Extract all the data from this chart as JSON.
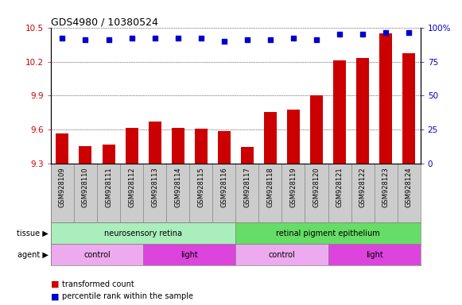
{
  "title": "GDS4980 / 10380524",
  "samples": [
    "GSM928109",
    "GSM928110",
    "GSM928111",
    "GSM928112",
    "GSM928113",
    "GSM928114",
    "GSM928115",
    "GSM928116",
    "GSM928117",
    "GSM928118",
    "GSM928119",
    "GSM928120",
    "GSM928121",
    "GSM928122",
    "GSM928123",
    "GSM928124"
  ],
  "bar_values": [
    9.57,
    9.46,
    9.47,
    9.62,
    9.67,
    9.62,
    9.61,
    9.59,
    9.45,
    9.76,
    9.78,
    9.9,
    10.21,
    10.23,
    10.45,
    10.27
  ],
  "percentile_values": [
    92,
    91,
    91,
    92,
    92,
    92,
    92,
    90,
    91,
    91,
    92,
    91,
    95,
    95,
    96,
    96
  ],
  "bar_color": "#cc0000",
  "dot_color": "#0000cc",
  "ylim_left": [
    9.3,
    10.5
  ],
  "ylim_right": [
    0,
    100
  ],
  "yticks_left": [
    9.3,
    9.6,
    9.9,
    10.2,
    10.5
  ],
  "yticks_right": [
    0,
    25,
    50,
    75,
    100
  ],
  "tissue_groups": [
    {
      "label": "neurosensory retina",
      "start": 0,
      "end": 7,
      "color": "#aaeebb"
    },
    {
      "label": "retinal pigment epithelium",
      "start": 8,
      "end": 15,
      "color": "#66dd66"
    }
  ],
  "agent_groups": [
    {
      "label": "control",
      "start": 0,
      "end": 3,
      "color": "#eeaaee"
    },
    {
      "label": "light",
      "start": 4,
      "end": 7,
      "color": "#dd44dd"
    },
    {
      "label": "control",
      "start": 8,
      "end": 11,
      "color": "#eeaaee"
    },
    {
      "label": "light",
      "start": 12,
      "end": 15,
      "color": "#dd44dd"
    }
  ],
  "legend_items": [
    {
      "label": "transformed count",
      "color": "#cc0000"
    },
    {
      "label": "percentile rank within the sample",
      "color": "#0000cc"
    }
  ],
  "plot_bg": "#ffffff",
  "sample_bg": "#cccccc",
  "label_tissue": "tissue",
  "label_agent": "agent",
  "bar_width": 0.55
}
